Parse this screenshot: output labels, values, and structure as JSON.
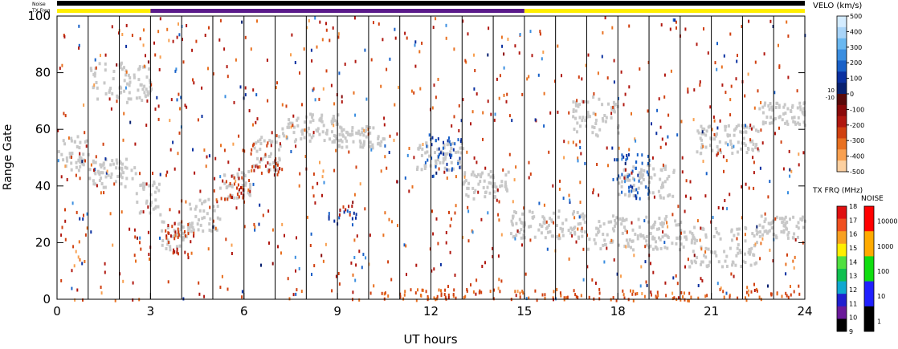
{
  "chart_data": {
    "type": "heatmap",
    "xlabel": "UT hours",
    "ylabel": "Range Gate",
    "xlim": [
      0,
      24
    ],
    "ylim": [
      0,
      100
    ],
    "x_ticks": [
      "0",
      "3",
      "6",
      "9",
      "12",
      "15",
      "18",
      "21",
      "24"
    ],
    "x_tick_values": [
      0,
      3,
      6,
      9,
      12,
      15,
      18,
      21,
      24
    ],
    "y_ticks": [
      "0",
      "20",
      "40",
      "60",
      "80",
      "100"
    ],
    "y_tick_values": [
      0,
      20,
      40,
      60,
      80,
      100
    ],
    "scan_lines_ut": [
      1,
      2,
      3,
      4,
      5,
      6,
      7,
      8,
      9,
      10,
      11,
      12,
      13,
      14,
      15,
      16,
      17,
      18,
      19,
      20,
      21,
      22,
      23
    ],
    "top_bars": {
      "noise_label": "Noise",
      "txfreq_label": "TX Freq",
      "noise_color": "#000000",
      "txfreq_segments": [
        {
          "start": 0,
          "end": 3,
          "color": "#ffee00"
        },
        {
          "start": 3,
          "end": 15,
          "color": "#5a1a8a"
        },
        {
          "start": 15,
          "end": 24,
          "color": "#ffee00"
        }
      ]
    },
    "ground_scatter_color": "#c8c8c8",
    "ground_scatter_bands": [
      {
        "ut": [
          0.0,
          1.0
        ],
        "gate": [
          46,
          58
        ]
      },
      {
        "ut": [
          1.0,
          2.5
        ],
        "gate": [
          40,
          50
        ]
      },
      {
        "ut": [
          2.5,
          3.3
        ],
        "gate": [
          30,
          42
        ]
      },
      {
        "ut": [
          3.3,
          4.2
        ],
        "gate": [
          18,
          28
        ]
      },
      {
        "ut": [
          4.2,
          5.2
        ],
        "gate": [
          24,
          36
        ]
      },
      {
        "ut": [
          5.2,
          6.2
        ],
        "gate": [
          36,
          46
        ]
      },
      {
        "ut": [
          6.2,
          7.2
        ],
        "gate": [
          46,
          58
        ]
      },
      {
        "ut": [
          7.2,
          9.0
        ],
        "gate": [
          56,
          66
        ]
      },
      {
        "ut": [
          9.0,
          10.5
        ],
        "gate": [
          54,
          62
        ]
      },
      {
        "ut": [
          11.5,
          13.0
        ],
        "gate": [
          46,
          56
        ]
      },
      {
        "ut": [
          13.0,
          14.5
        ],
        "gate": [
          36,
          46
        ]
      },
      {
        "ut": [
          14.5,
          17.0
        ],
        "gate": [
          22,
          32
        ]
      },
      {
        "ut": [
          17.0,
          20.0
        ],
        "gate": [
          18,
          30
        ]
      },
      {
        "ut": [
          20.0,
          22.5
        ],
        "gate": [
          12,
          26
        ]
      },
      {
        "ut": [
          22.5,
          24.0
        ],
        "gate": [
          22,
          30
        ]
      },
      {
        "ut": [
          16.5,
          18.0
        ],
        "gate": [
          58,
          72
        ]
      },
      {
        "ut": [
          18.0,
          19.8
        ],
        "gate": [
          36,
          48
        ]
      },
      {
        "ut": [
          20.5,
          22.5
        ],
        "gate": [
          52,
          62
        ]
      },
      {
        "ut": [
          22.5,
          24.0
        ],
        "gate": [
          62,
          70
        ]
      },
      {
        "ut": [
          1.0,
          3.0
        ],
        "gate": [
          70,
          84
        ]
      }
    ],
    "velocity_features": [
      {
        "ut": [
          8.6,
          9.6
        ],
        "gate": [
          26,
          32
        ],
        "velocity": 150
      },
      {
        "ut": [
          9.1,
          9.6
        ],
        "gate": [
          30,
          35
        ],
        "velocity": -200
      },
      {
        "ut": [
          11.8,
          13.0
        ],
        "gate": [
          46,
          58
        ],
        "velocity": 150
      },
      {
        "ut": [
          17.8,
          19.0
        ],
        "gate": [
          36,
          52
        ],
        "velocity": 200
      },
      {
        "ut": [
          3.4,
          4.3
        ],
        "gate": [
          16,
          28
        ],
        "velocity": -250
      },
      {
        "ut": [
          5.0,
          6.2
        ],
        "gate": [
          34,
          44
        ],
        "velocity": -250
      },
      {
        "ut": [
          6.2,
          7.2
        ],
        "gate": [
          44,
          56
        ],
        "velocity": -250
      },
      {
        "ut": [
          10.0,
          24.0
        ],
        "gate": [
          0,
          4
        ],
        "velocity": -300
      }
    ],
    "velo_colorbar": {
      "title": "VELO (km/s)",
      "ticks": [
        "500",
        "400",
        "300",
        "200",
        "100",
        "0",
        "-100",
        "-200",
        "-300",
        "-400",
        "-500"
      ],
      "tick_values": [
        500,
        400,
        300,
        200,
        100,
        0,
        -100,
        -200,
        -300,
        -400,
        -500
      ],
      "marks": [
        "10",
        "-10"
      ],
      "colors": [
        "#d4ecff",
        "#a8d4f8",
        "#6ab8f0",
        "#3a8ee0",
        "#1860c8",
        "#0a30a0",
        "#082070",
        "#5a0a0a",
        "#8a0a0a",
        "#b01810",
        "#d04010",
        "#e87020",
        "#f8a050",
        "#fcd0a0"
      ]
    },
    "txfreq_colorbar": {
      "title": "TX FRQ (MHz)",
      "ticks": [
        "18",
        "17",
        "16",
        "15",
        "14",
        "13",
        "12",
        "11",
        "10",
        "9"
      ],
      "tick_values": [
        18,
        17,
        16,
        15,
        14,
        13,
        12,
        11,
        10,
        9
      ],
      "colors": [
        "#e01010",
        "#f05020",
        "#f8a020",
        "#ffee00",
        "#50e040",
        "#10c050",
        "#10a8d0",
        "#2020d0",
        "#6a1a9a",
        "#000000"
      ]
    },
    "noise_colorbar": {
      "title": "NOISE",
      "ticks": [
        "10000",
        "1000",
        "100",
        "10",
        "1"
      ],
      "tick_values": [
        10000,
        1000,
        100,
        10,
        1
      ],
      "colors": [
        "#ff0000",
        "#ffaa00",
        "#10dd10",
        "#2020ff",
        "#000000"
      ]
    }
  }
}
